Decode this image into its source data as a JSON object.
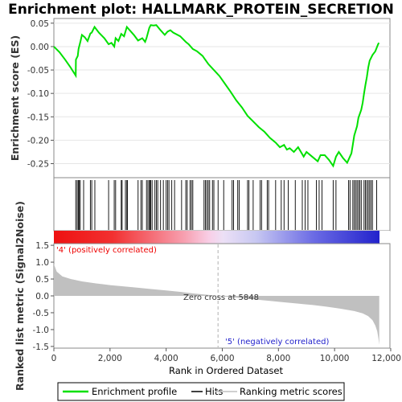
{
  "title": "Enrichment plot: HALLMARK_PROTEIN_SECRETION",
  "chart_data": {
    "type": "line",
    "title": "Enrichment plot: HALLMARK_PROTEIN_SECRETION",
    "x_range": [
      0,
      11600
    ],
    "xlabel": "Rank in Ordered Dataset",
    "x_ticks": [
      0,
      2000,
      4000,
      6000,
      8000,
      10000,
      12000
    ],
    "x_tick_labels": [
      "0",
      "2,000",
      "4,000",
      "6,000",
      "8,000",
      "10,000",
      "12,000"
    ],
    "es_panel": {
      "ylabel": "Enrichment score (ES)",
      "ylim": [
        -0.28,
        0.06
      ],
      "y_ticks": [
        -0.25,
        -0.2,
        -0.15,
        -0.1,
        -0.05,
        0.0,
        0.05
      ],
      "y_tick_labels": [
        "-0.25",
        "-0.20",
        "-0.15",
        "-0.10",
        "-0.05",
        "0.00",
        "0.05"
      ],
      "series": [
        {
          "name": "Enrichment profile",
          "color": "#00e000",
          "points": [
            [
              0,
              0.0
            ],
            [
              200,
              -0.012
            ],
            [
              400,
              -0.028
            ],
            [
              600,
              -0.045
            ],
            [
              780,
              -0.062
            ],
            [
              785,
              -0.028
            ],
            [
              850,
              -0.02
            ],
            [
              880,
              -0.005
            ],
            [
              950,
              0.012
            ],
            [
              1000,
              0.025
            ],
            [
              1100,
              0.02
            ],
            [
              1200,
              0.012
            ],
            [
              1300,
              0.028
            ],
            [
              1350,
              0.03
            ],
            [
              1450,
              0.042
            ],
            [
              1600,
              0.03
            ],
            [
              1800,
              0.018
            ],
            [
              1950,
              0.005
            ],
            [
              2050,
              0.008
            ],
            [
              2150,
              0.0
            ],
            [
              2200,
              0.018
            ],
            [
              2300,
              0.012
            ],
            [
              2400,
              0.027
            ],
            [
              2500,
              0.022
            ],
            [
              2600,
              0.042
            ],
            [
              2700,
              0.035
            ],
            [
              2850,
              0.025
            ],
            [
              3000,
              0.013
            ],
            [
              3150,
              0.018
            ],
            [
              3250,
              0.01
            ],
            [
              3300,
              0.018
            ],
            [
              3400,
              0.04
            ],
            [
              3450,
              0.046
            ],
            [
              3550,
              0.045
            ],
            [
              3650,
              0.046
            ],
            [
              3800,
              0.035
            ],
            [
              3950,
              0.025
            ],
            [
              4050,
              0.032
            ],
            [
              4150,
              0.035
            ],
            [
              4250,
              0.03
            ],
            [
              4500,
              0.022
            ],
            [
              4700,
              0.01
            ],
            [
              4800,
              0.005
            ],
            [
              4950,
              -0.005
            ],
            [
              5100,
              -0.01
            ],
            [
              5300,
              -0.02
            ],
            [
              5500,
              -0.037
            ],
            [
              5700,
              -0.05
            ],
            [
              5900,
              -0.063
            ],
            [
              6100,
              -0.08
            ],
            [
              6300,
              -0.097
            ],
            [
              6500,
              -0.115
            ],
            [
              6700,
              -0.13
            ],
            [
              6900,
              -0.148
            ],
            [
              7100,
              -0.16
            ],
            [
              7300,
              -0.172
            ],
            [
              7500,
              -0.182
            ],
            [
              7700,
              -0.195
            ],
            [
              7900,
              -0.205
            ],
            [
              8050,
              -0.215
            ],
            [
              8200,
              -0.21
            ],
            [
              8300,
              -0.22
            ],
            [
              8400,
              -0.217
            ],
            [
              8550,
              -0.225
            ],
            [
              8700,
              -0.215
            ],
            [
              8900,
              -0.235
            ],
            [
              9000,
              -0.225
            ],
            [
              9200,
              -0.235
            ],
            [
              9400,
              -0.245
            ],
            [
              9500,
              -0.232
            ],
            [
              9650,
              -0.232
            ],
            [
              9800,
              -0.242
            ],
            [
              9950,
              -0.255
            ],
            [
              10050,
              -0.235
            ],
            [
              10150,
              -0.225
            ],
            [
              10300,
              -0.238
            ],
            [
              10450,
              -0.248
            ],
            [
              10600,
              -0.228
            ],
            [
              10650,
              -0.21
            ],
            [
              10700,
              -0.19
            ],
            [
              10800,
              -0.17
            ],
            [
              10850,
              -0.152
            ],
            [
              10950,
              -0.135
            ],
            [
              11000,
              -0.12
            ],
            [
              11050,
              -0.1
            ],
            [
              11100,
              -0.082
            ],
            [
              11150,
              -0.065
            ],
            [
              11200,
              -0.045
            ],
            [
              11250,
              -0.03
            ],
            [
              11350,
              -0.018
            ],
            [
              11450,
              -0.01
            ],
            [
              11550,
              0.005
            ],
            [
              11580,
              0.008
            ]
          ]
        }
      ]
    },
    "hits": {
      "name": "Hits",
      "color": "#000000",
      "ranks": [
        780,
        830,
        870,
        900,
        940,
        1060,
        1300,
        1350,
        1460,
        1950,
        2150,
        2200,
        2400,
        2430,
        2550,
        2600,
        2620,
        3000,
        3100,
        3150,
        3300,
        3350,
        3400,
        3430,
        3450,
        3500,
        3600,
        3650,
        3700,
        3800,
        3900,
        4000,
        4050,
        4100,
        4200,
        4300,
        4550,
        4700,
        4750,
        4850,
        4900,
        4950,
        5350,
        5400,
        5450,
        5500,
        5550,
        5650,
        5700,
        5850,
        6050,
        6350,
        6400,
        6550,
        6600,
        6900,
        6950,
        7100,
        7350,
        7400,
        7600,
        7650,
        7900,
        8100,
        8200,
        8350,
        8600,
        8850,
        8950,
        9050,
        9350,
        9450,
        9550,
        9950,
        10050,
        10500,
        10550,
        10650,
        10700,
        10750,
        10800,
        10850,
        10900,
        10950,
        11050,
        11100,
        11150,
        11200,
        11250,
        11300,
        11350,
        11500
      ]
    },
    "ranked_metric_panel": {
      "name": "Ranking metric scores",
      "ylabel": "Ranked list metric (Signal2Noise)",
      "ylim": [
        -1.55,
        1.55
      ],
      "y_ticks": [
        -1.5,
        -1.0,
        -0.5,
        0.0,
        0.5,
        1.0,
        1.5
      ],
      "y_tick_labels": [
        "-1.5",
        "-1.0",
        "-0.5",
        "0.0",
        "0.5",
        "1.0",
        "1.5"
      ],
      "color": "#c0c0c0",
      "points": [
        [
          0,
          0.95
        ],
        [
          100,
          0.72
        ],
        [
          300,
          0.58
        ],
        [
          600,
          0.5
        ],
        [
          1000,
          0.43
        ],
        [
          1500,
          0.37
        ],
        [
          2000,
          0.32
        ],
        [
          2500,
          0.28
        ],
        [
          3000,
          0.24
        ],
        [
          3500,
          0.2
        ],
        [
          4000,
          0.16
        ],
        [
          4500,
          0.12
        ],
        [
          5000,
          0.07
        ],
        [
          5500,
          0.03
        ],
        [
          5848,
          0.0
        ],
        [
          6200,
          -0.03
        ],
        [
          6700,
          -0.07
        ],
        [
          7200,
          -0.11
        ],
        [
          7700,
          -0.15
        ],
        [
          8200,
          -0.19
        ],
        [
          8700,
          -0.23
        ],
        [
          9200,
          -0.27
        ],
        [
          9700,
          -0.32
        ],
        [
          10200,
          -0.38
        ],
        [
          10700,
          -0.45
        ],
        [
          11000,
          -0.52
        ],
        [
          11200,
          -0.6
        ],
        [
          11350,
          -0.72
        ],
        [
          11450,
          -0.88
        ],
        [
          11520,
          -1.05
        ],
        [
          11560,
          -1.25
        ],
        [
          11590,
          -1.45
        ]
      ],
      "zero_cross_label": "Zero cross at 5848",
      "zero_cross_rank": 5848,
      "positive_label": "'4' (positively correlated)",
      "negative_label": "'5' (negatively correlated)",
      "positive_color": "#ee0000",
      "negative_color": "#2222cc"
    },
    "legend": {
      "placement": "bottom",
      "items": [
        {
          "label": "Enrichment profile",
          "color": "#00e000"
        },
        {
          "label": "Hits",
          "color": "#000000"
        },
        {
          "label": "Ranking metric scores",
          "color": "#c0c0c0"
        }
      ]
    }
  }
}
